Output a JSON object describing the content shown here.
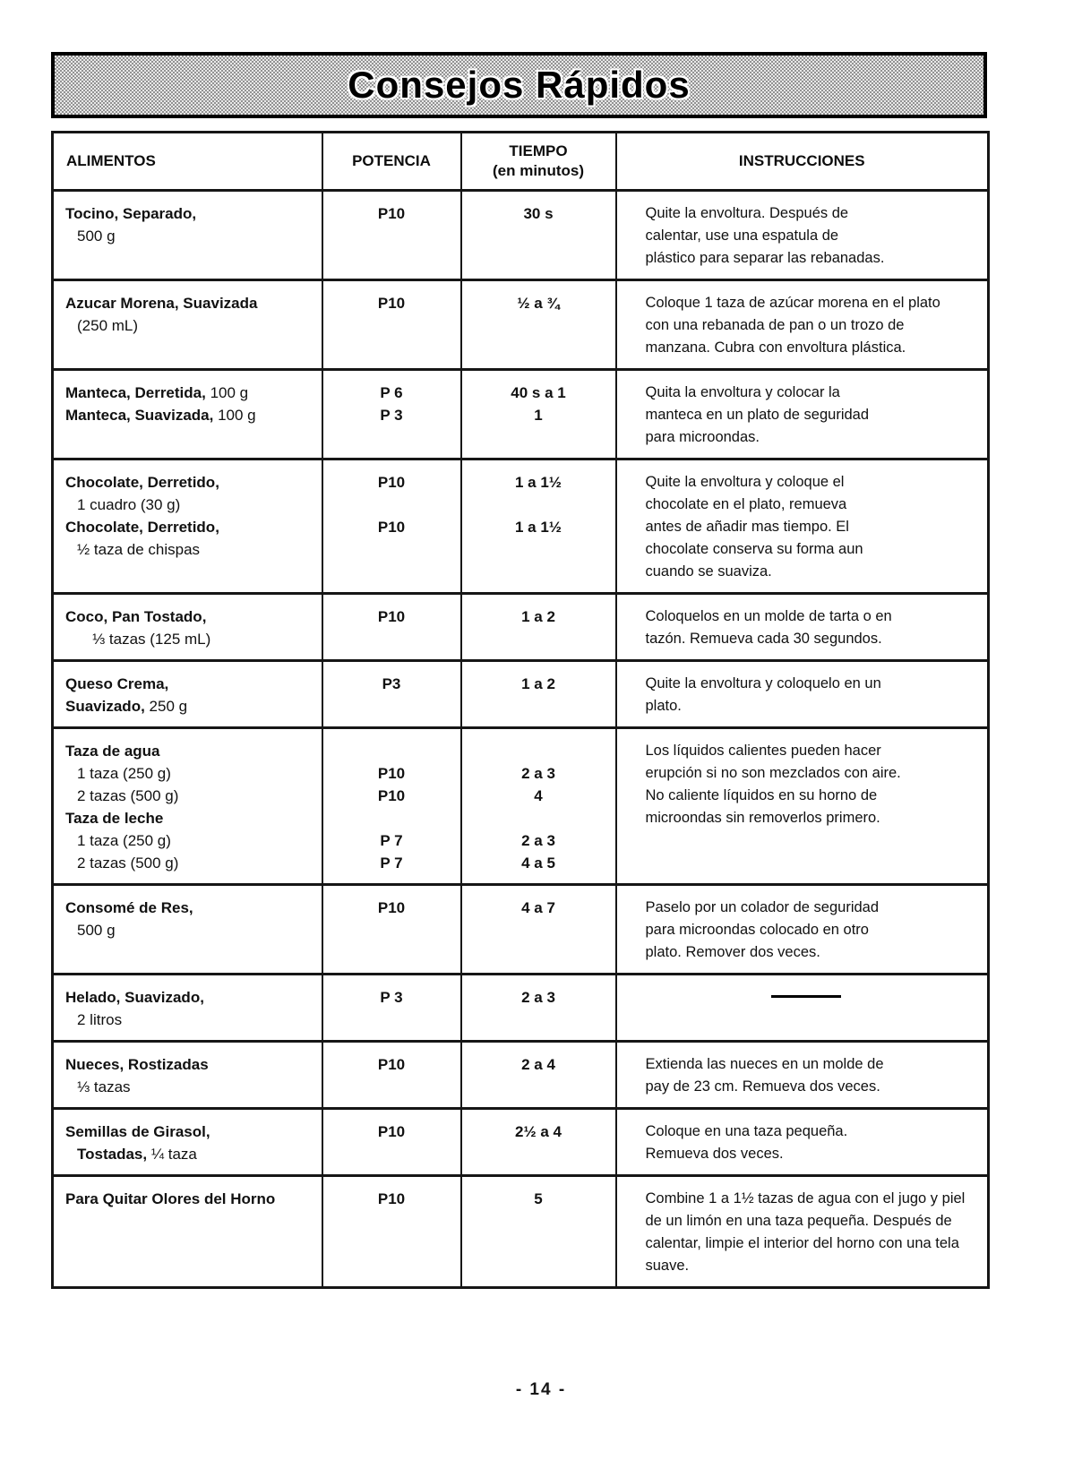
{
  "banner": {
    "title": "Consejos Rápidos"
  },
  "footer": {
    "page_number": "- 14 -"
  },
  "colors": {
    "banner_fill_dark": "#929292",
    "banner_fill_light": "#e8e8e8",
    "border": "#161616",
    "text": "#111111"
  },
  "table": {
    "headers": {
      "alimentos": "ALIMENTOS",
      "potencia": "POTENCIA",
      "tiempo": "TIEMPO",
      "tiempo_sub": "(en minutos)",
      "instrucciones": "INSTRUCCIONES"
    },
    "rows": [
      {
        "alimentos": [
          {
            "indent": 0,
            "parts": [
              {
                "text": "Tocino, Separado,",
                "bold": true
              }
            ]
          },
          {
            "indent": 1,
            "parts": [
              {
                "text": "500 g",
                "bold": false
              }
            ]
          }
        ],
        "potencia": [
          "P10"
        ],
        "tiempo": [
          "30 s"
        ],
        "instrucciones": [
          "Quite la envoltura. Después de",
          "calentar, use una espatula de",
          "plástico para separar las rebanadas."
        ]
      },
      {
        "alimentos": [
          {
            "indent": 0,
            "parts": [
              {
                "text": "Azucar Morena, Suavizada",
                "bold": true
              }
            ]
          },
          {
            "indent": 1,
            "parts": [
              {
                "text": "(250 mL)",
                "bold": false
              }
            ]
          }
        ],
        "potencia": [
          "P10"
        ],
        "tiempo": [
          "½ a ¾"
        ],
        "instrucciones": [
          "Coloque 1 taza de azúcar morena en el plato",
          "con una rebanada de pan o un trozo de",
          "manzana. Cubra con envoltura plástica."
        ]
      },
      {
        "alimentos": [
          {
            "indent": 0,
            "parts": [
              {
                "text": "Manteca, Derretida,",
                "bold": true
              },
              {
                "text": " 100 g",
                "bold": false
              }
            ]
          },
          {
            "indent": 0,
            "parts": [
              {
                "text": "Manteca, Suavizada,",
                "bold": true
              },
              {
                "text": " 100 g",
                "bold": false
              }
            ]
          }
        ],
        "potencia": [
          "P 6",
          "P 3"
        ],
        "tiempo": [
          "40 s a 1",
          "1"
        ],
        "instrucciones": [
          "Quita la envoltura y colocar la",
          "manteca en un plato de seguridad",
          "para microondas."
        ]
      },
      {
        "alimentos": [
          {
            "indent": 0,
            "parts": [
              {
                "text": "Chocolate, Derretido,",
                "bold": true
              }
            ]
          },
          {
            "indent": 1,
            "parts": [
              {
                "text": "1 cuadro (30 g)",
                "bold": false
              }
            ]
          },
          {
            "indent": 0,
            "parts": [
              {
                "text": "Chocolate, Derretido,",
                "bold": true
              }
            ]
          },
          {
            "indent": 1,
            "parts": [
              {
                "text": "½ taza de chispas",
                "bold": false
              }
            ]
          }
        ],
        "potencia": [
          "P10",
          "",
          "P10"
        ],
        "tiempo": [
          "1 a 1½",
          "",
          "1 a 1½"
        ],
        "instrucciones": [
          "Quite la envoltura y coloque el",
          "chocolate en el plato, remueva",
          "antes de añadir mas tiempo. El",
          "chocolate conserva su forma aun",
          "cuando se suaviza."
        ]
      },
      {
        "alimentos": [
          {
            "indent": 0,
            "parts": [
              {
                "text": "Coco, Pan Tostado,",
                "bold": true
              }
            ]
          },
          {
            "indent": 2,
            "parts": [
              {
                "text": "⅓ tazas (125 mL)",
                "bold": false
              }
            ]
          }
        ],
        "potencia": [
          "P10"
        ],
        "tiempo": [
          "1 a 2"
        ],
        "instrucciones": [
          "Coloquelos en un molde de tarta o en",
          "tazón. Remueva cada 30 segundos."
        ]
      },
      {
        "alimentos": [
          {
            "indent": 0,
            "parts": [
              {
                "text": "Queso Crema,",
                "bold": true
              }
            ]
          },
          {
            "indent": 0,
            "parts": [
              {
                "text": "Suavizado,",
                "bold": true
              },
              {
                "text": " 250 g",
                "bold": false
              }
            ]
          }
        ],
        "potencia": [
          "P3"
        ],
        "tiempo": [
          "1 a 2"
        ],
        "instrucciones": [
          "Quite la envoltura y coloquelo en un",
          "plato."
        ]
      },
      {
        "alimentos": [
          {
            "indent": 0,
            "parts": [
              {
                "text": "Taza de agua",
                "bold": true
              }
            ]
          },
          {
            "indent": 1,
            "parts": [
              {
                "text": "1 taza (250 g)",
                "bold": false
              }
            ]
          },
          {
            "indent": 1,
            "parts": [
              {
                "text": "2 tazas (500 g)",
                "bold": false
              }
            ]
          },
          {
            "indent": 0,
            "parts": [
              {
                "text": "Taza de leche",
                "bold": true
              }
            ]
          },
          {
            "indent": 1,
            "parts": [
              {
                "text": "1 taza (250 g)",
                "bold": false
              }
            ]
          },
          {
            "indent": 1,
            "parts": [
              {
                "text": "2 tazas (500 g)",
                "bold": false
              }
            ]
          }
        ],
        "potencia": [
          "",
          "P10",
          "P10",
          "",
          "P 7",
          "P 7"
        ],
        "tiempo": [
          "",
          "2 a 3",
          "4",
          "",
          "2 a 3",
          "4 a 5"
        ],
        "instrucciones": [
          "Los líquidos calientes pueden hacer",
          "erupción si no son mezclados con aire.",
          "No caliente líquidos en su horno de",
          "microondas sin removerlos primero."
        ]
      },
      {
        "alimentos": [
          {
            "indent": 0,
            "parts": [
              {
                "text": "Consomé de Res,",
                "bold": true
              }
            ]
          },
          {
            "indent": 1,
            "parts": [
              {
                "text": "500 g",
                "bold": false
              }
            ]
          }
        ],
        "potencia": [
          "P10"
        ],
        "tiempo": [
          "4 a 7"
        ],
        "instrucciones": [
          "Paselo por un colador de seguridad",
          "para microondas colocado en otro",
          "plato. Remover dos veces."
        ]
      },
      {
        "alimentos": [
          {
            "indent": 0,
            "parts": [
              {
                "text": "Helado, Suavizado,",
                "bold": true
              }
            ]
          },
          {
            "indent": 1,
            "parts": [
              {
                "text": "2 litros",
                "bold": false
              }
            ]
          }
        ],
        "potencia": [
          "P 3"
        ],
        "tiempo": [
          "2 a 3"
        ],
        "dash": true,
        "instrucciones": []
      },
      {
        "alimentos": [
          {
            "indent": 0,
            "parts": [
              {
                "text": "Nueces, Rostizadas",
                "bold": true
              }
            ]
          },
          {
            "indent": 1,
            "parts": [
              {
                "text": "⅓ tazas",
                "bold": false
              }
            ]
          }
        ],
        "potencia": [
          "P10"
        ],
        "tiempo": [
          "2 a 4"
        ],
        "instrucciones": [
          "Extienda las nueces en un molde de",
          "pay de 23 cm. Remueva dos veces."
        ]
      },
      {
        "alimentos": [
          {
            "indent": 0,
            "parts": [
              {
                "text": "Semillas de Girasol,",
                "bold": true
              }
            ]
          },
          {
            "indent": 1,
            "parts": [
              {
                "text": "Tostadas,",
                "bold": true
              },
              {
                "text": " ¼ taza",
                "bold": false
              }
            ]
          }
        ],
        "potencia": [
          "P10"
        ],
        "tiempo": [
          "2½ a 4"
        ],
        "instrucciones": [
          "Coloque en una taza pequeña.",
          "Remueva dos veces."
        ]
      },
      {
        "alimentos": [
          {
            "indent": 0,
            "parts": [
              {
                "text": "Para Quitar Olores del Horno",
                "bold": true
              }
            ]
          }
        ],
        "potencia": [
          "P10"
        ],
        "tiempo": [
          "5"
        ],
        "instrucciones": [
          "Combine 1 a 1½ tazas de agua con el jugo y piel",
          "de un limón en una taza pequeña. Después de",
          "calentar, limpie el interior del horno con una tela",
          "suave."
        ]
      }
    ]
  }
}
